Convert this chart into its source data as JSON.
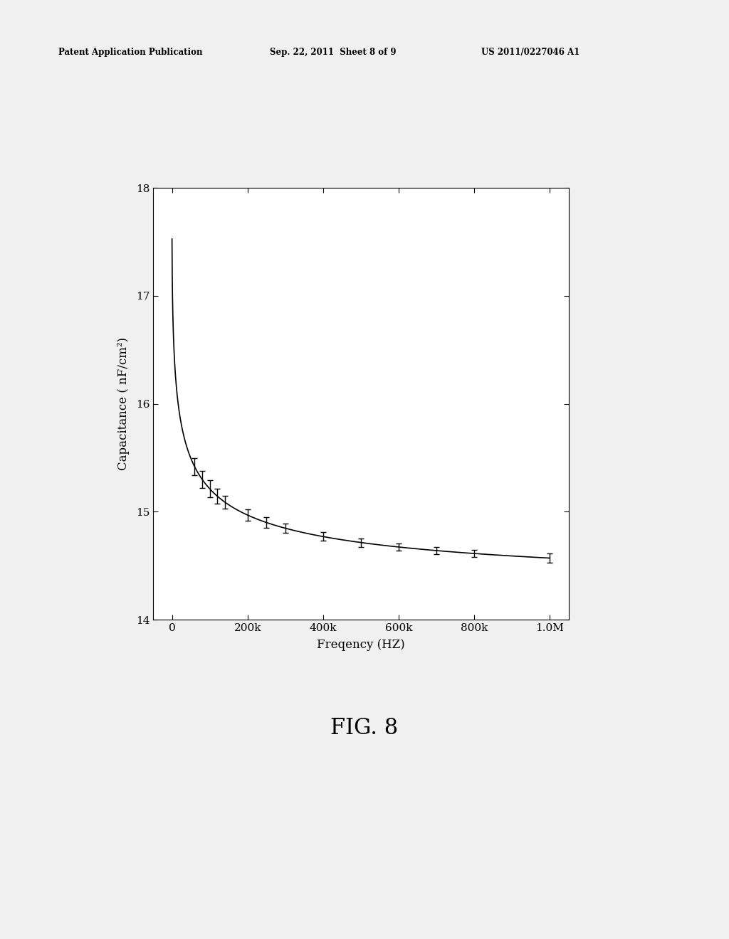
{
  "title": "FIG. 8",
  "xlabel": "Freqency (HZ)",
  "ylabel": "Capacitance ( nF/cm²)",
  "header_left": "Patent Application Publication",
  "header_center": "Sep. 22, 2011  Sheet 8 of 9",
  "header_right": "US 2011/0227046 A1",
  "xlim": [
    -50000,
    1050000
  ],
  "ylim": [
    14,
    18
  ],
  "xticks": [
    0,
    200000,
    400000,
    600000,
    800000,
    1000000
  ],
  "xticklabels": [
    "0",
    "200k",
    "400k",
    "600k",
    "800k",
    "1.0M"
  ],
  "yticks": [
    14,
    15,
    16,
    17,
    18
  ],
  "yticklabels": [
    "14",
    "15",
    "16",
    "17",
    "18"
  ],
  "background_color": "#f0f0f0",
  "plot_bg": "#ffffff",
  "line_color": "#000000",
  "errbar_color": "#000000",
  "errorbar_x": [
    60000,
    80000,
    100000,
    120000,
    140000,
    200000,
    250000,
    300000,
    400000,
    500000,
    600000,
    700000,
    800000,
    1000000
  ],
  "errorbar_yerr": [
    0.08,
    0.08,
    0.08,
    0.07,
    0.06,
    0.05,
    0.05,
    0.045,
    0.04,
    0.04,
    0.035,
    0.035,
    0.035,
    0.04
  ]
}
